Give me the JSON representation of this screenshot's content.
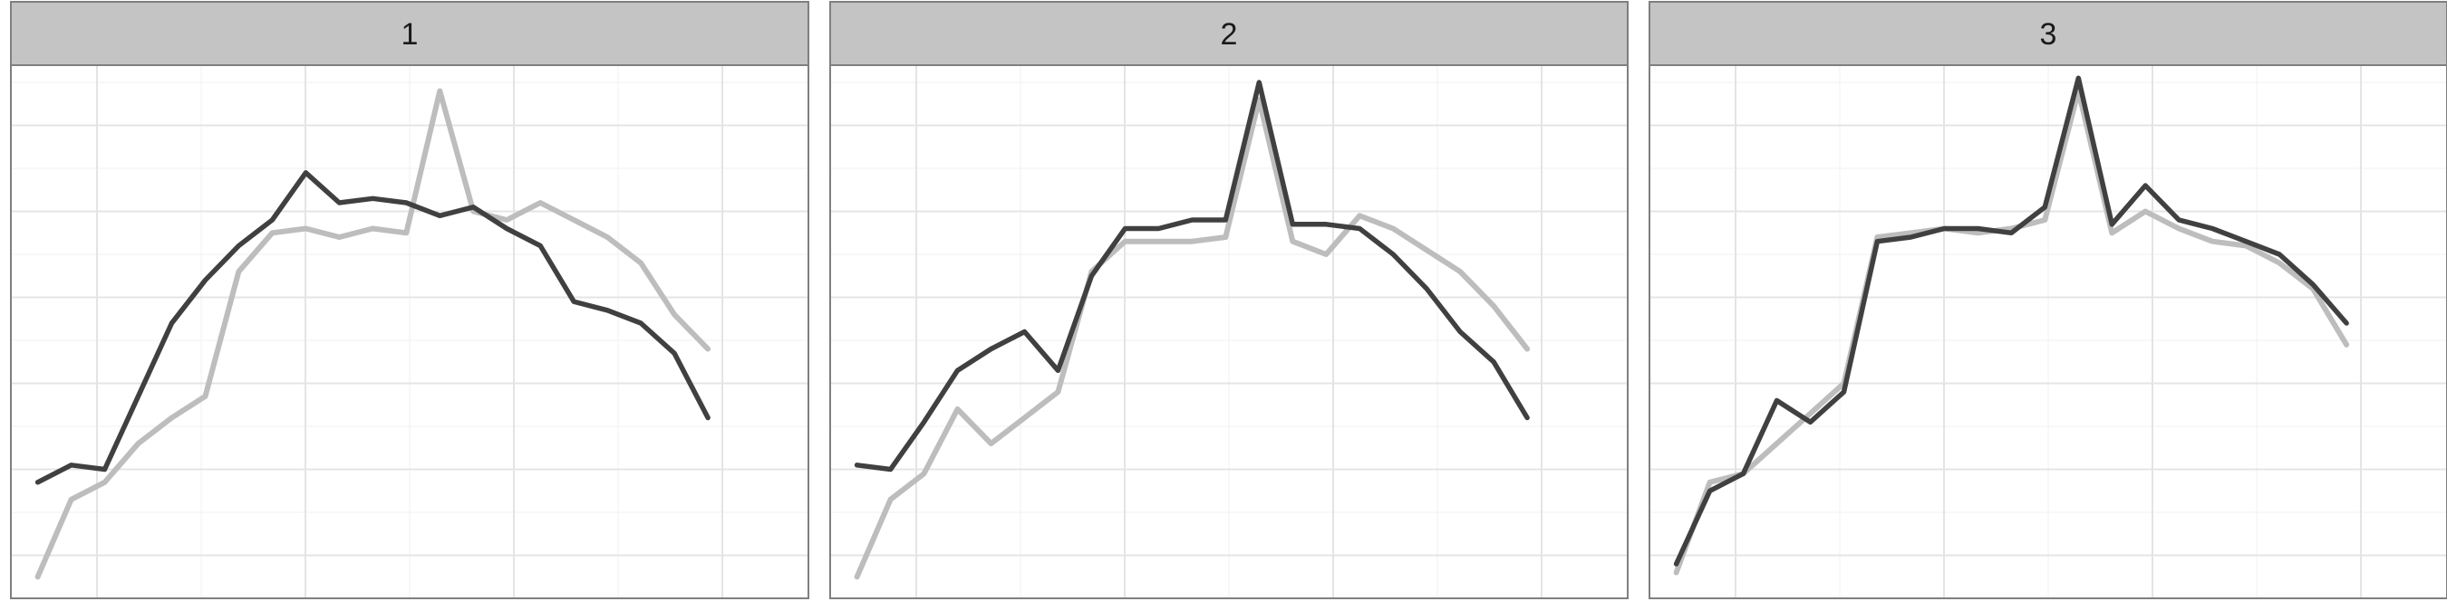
{
  "chart_data": {
    "type": "line",
    "title": "",
    "xlabel": "",
    "ylabel": "",
    "grid": true,
    "legend": "none",
    "x": [
      0,
      0.5,
      1,
      1.5,
      2,
      2.5,
      3,
      3.5,
      4,
      4.5,
      5,
      5.5,
      6,
      6.5,
      7,
      7.5,
      8,
      8.5,
      9,
      9.5,
      10
    ],
    "xlim": [
      -0.4,
      11.5
    ],
    "ylim": [
      0,
      6.2
    ],
    "panels": [
      {
        "label": "1",
        "series": [
          {
            "color": "#bdbdbd",
            "values": [
              0.25,
              1.15,
              1.35,
              1.8,
              2.1,
              2.35,
              3.8,
              4.25,
              4.3,
              4.2,
              4.3,
              4.25,
              5.9,
              4.5,
              4.4,
              4.6,
              4.4,
              4.2,
              3.9,
              3.3,
              2.9
            ]
          },
          {
            "color": "#404040",
            "values": [
              1.35,
              1.55,
              1.5,
              2.35,
              3.2,
              3.7,
              4.1,
              4.4,
              4.95,
              4.6,
              4.65,
              4.6,
              4.45,
              4.55,
              4.3,
              4.1,
              3.45,
              3.35,
              3.2,
              2.85,
              2.1
            ]
          }
        ]
      },
      {
        "label": "2",
        "series": [
          {
            "color": "#bdbdbd",
            "values": [
              0.25,
              1.15,
              1.45,
              2.2,
              1.8,
              2.1,
              2.4,
              3.8,
              4.15,
              4.15,
              4.15,
              4.2,
              5.8,
              4.15,
              4.0,
              4.45,
              4.3,
              4.05,
              3.8,
              3.4,
              2.9
            ]
          },
          {
            "color": "#404040",
            "values": [
              1.55,
              1.5,
              2.05,
              2.65,
              2.9,
              3.1,
              2.65,
              3.75,
              4.3,
              4.3,
              4.4,
              4.4,
              6.0,
              4.35,
              4.35,
              4.3,
              4.0,
              3.6,
              3.1,
              2.75,
              2.1
            ]
          }
        ]
      },
      {
        "label": "3",
        "series": [
          {
            "color": "#bdbdbd",
            "values": [
              0.3,
              1.35,
              1.45,
              1.8,
              2.15,
              2.5,
              4.2,
              4.25,
              4.3,
              4.25,
              4.3,
              4.4,
              5.9,
              4.25,
              4.5,
              4.3,
              4.15,
              4.1,
              3.9,
              3.6,
              2.95
            ]
          },
          {
            "color": "#404040",
            "values": [
              0.4,
              1.25,
              1.45,
              2.3,
              2.05,
              2.4,
              4.15,
              4.2,
              4.3,
              4.3,
              4.25,
              4.55,
              6.05,
              4.35,
              4.8,
              4.4,
              4.3,
              4.15,
              4.0,
              3.65,
              3.2
            ]
          }
        ]
      }
    ]
  }
}
